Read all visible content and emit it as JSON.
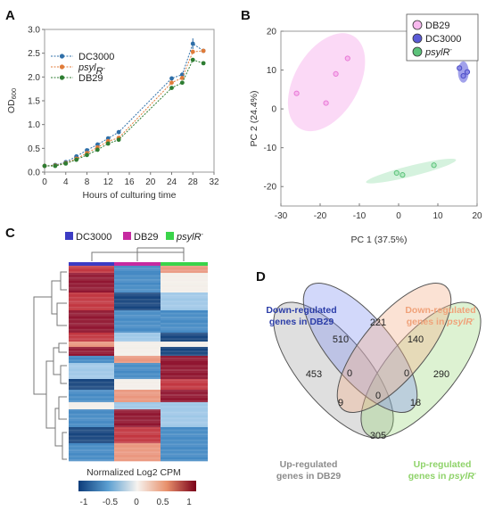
{
  "figure": {
    "panel_labels": [
      "A",
      "B",
      "C",
      "D"
    ]
  },
  "chart_data": [
    {
      "panel": "A",
      "type": "line",
      "xlabel": "Hours of culturing time",
      "ylabel": "OD600",
      "xlim": [
        0,
        32
      ],
      "ylim": [
        0,
        3.0
      ],
      "xticks": [
        "0",
        "4",
        "8",
        "12",
        "16",
        "20",
        "24",
        "28",
        "32"
      ],
      "yticks": [
        "0.0",
        "0.5",
        "1.0",
        "1.5",
        "2.0",
        "2.5",
        "3.0"
      ],
      "x": [
        0,
        2,
        4,
        6,
        8,
        10,
        12,
        14,
        24,
        26,
        28,
        30
      ],
      "series": [
        {
          "name": "DC3000",
          "color": "#2f6fa8",
          "values": [
            0.13,
            0.15,
            0.21,
            0.33,
            0.46,
            0.58,
            0.71,
            0.84,
            1.97,
            2.05,
            2.7,
            2.55
          ]
        },
        {
          "name": "psylR-",
          "color": "#e07b39",
          "values": [
            0.13,
            0.14,
            0.19,
            0.28,
            0.4,
            0.52,
            0.65,
            0.72,
            1.88,
            1.98,
            2.53,
            2.55
          ]
        },
        {
          "name": "DB29",
          "color": "#2e7d32",
          "values": [
            0.13,
            0.13,
            0.18,
            0.26,
            0.36,
            0.47,
            0.6,
            0.68,
            1.77,
            1.88,
            2.36,
            2.29
          ]
        }
      ],
      "legend": [
        {
          "label": "DC3000",
          "italic": false
        },
        {
          "label": "psyl",
          "sup": "",
          "suffix": "R",
          "sup2": "-",
          "italic": true
        },
        {
          "label": "DB29",
          "italic": false
        }
      ],
      "legend_loc": "top-left"
    },
    {
      "panel": "B",
      "type": "scatter",
      "xlabel": "PC 1 (37.5%)",
      "ylabel": "PC 2 (24.4%)",
      "xlim": [
        -30,
        20
      ],
      "ylim": [
        -25,
        20
      ],
      "xticks": [
        "-30",
        "-20",
        "-10",
        "0",
        "10",
        "20"
      ],
      "yticks": [
        "-20",
        "-10",
        "0",
        "10",
        "20"
      ],
      "series": [
        {
          "name": "DB29",
          "color": "#e87ad6",
          "fill": "#f7b9ee",
          "points": [
            [
              -26,
              4
            ],
            [
              -18.5,
              1.5
            ],
            [
              -16,
              9
            ],
            [
              -13,
              13
            ]
          ]
        },
        {
          "name": "DC3000",
          "color": "#4c4cc7",
          "fill": "#8b8be6",
          "points": [
            [
              15.5,
              10.5
            ],
            [
              16.5,
              8.5
            ],
            [
              17.5,
              9.5
            ]
          ]
        },
        {
          "name": "psylR-",
          "color": "#5cc27a",
          "fill": "#b3e8c2",
          "points": [
            [
              -0.5,
              -16.5
            ],
            [
              1,
              -17
            ],
            [
              9,
              -14.5
            ]
          ]
        }
      ],
      "legend_loc": "top-right"
    },
    {
      "panel": "C",
      "type": "heatmap",
      "legend": [
        {
          "name": "DC3000",
          "color": "#3c3cc4"
        },
        {
          "name": "DB29",
          "color": "#c62aa0"
        },
        {
          "name": "psylR-",
          "color": "#3ad44a"
        }
      ],
      "colorbar_title": "Normalized Log2 CPM",
      "colorbar_ticks": [
        "-1",
        "-0.5",
        "0",
        "0.5",
        "1"
      ]
    },
    {
      "panel": "D",
      "type": "table",
      "sets": [
        {
          "name": "down-DB29",
          "label_lines": [
            "Down-regulated",
            "genes in DB29"
          ],
          "color": "#2b3da8"
        },
        {
          "name": "down-psylR",
          "label_lines": [
            "Down-regulated",
            "genes in psylR-"
          ],
          "color": "#f0a27a"
        },
        {
          "name": "up-DB29",
          "label_lines": [
            "Up-regulated",
            "genes in DB29"
          ],
          "color": "#8c8c8c"
        },
        {
          "name": "up-psylR",
          "label_lines": [
            "Up-regulated",
            "genes in psylR-"
          ],
          "color": "#8fd36a"
        }
      ],
      "values": [
        "510",
        "221",
        "140",
        "453",
        "0",
        "0",
        "290",
        "9",
        "0",
        "18",
        "305"
      ]
    }
  ]
}
